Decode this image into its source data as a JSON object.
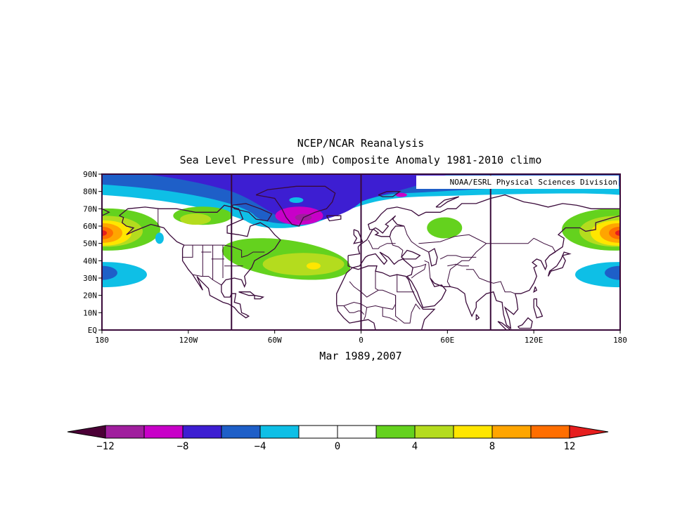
{
  "header": {
    "line1": "NCEP/NCAR Reanalysis",
    "line2": "Sea Level Pressure (mb) Composite Anomaly 1981-2010 climo"
  },
  "credit": "NOAA/ESRL Physical Sciences Division",
  "period_label": "Mar 1989,2007",
  "axes": {
    "lat_ticks": [
      "90N",
      "80N",
      "70N",
      "60N",
      "50N",
      "40N",
      "30N",
      "20N",
      "10N",
      "EQ"
    ],
    "lon_ticks": [
      "180",
      "120W",
      "60W",
      "0",
      "60E",
      "120E",
      "180"
    ]
  },
  "colorbar": {
    "levels": [
      -12,
      -10,
      -8,
      -6,
      -4,
      -2,
      0,
      2,
      4,
      6,
      8,
      10,
      12
    ],
    "labels": [
      "-12",
      "-8",
      "-4",
      "0",
      "4",
      "8",
      "12"
    ],
    "colors": [
      "#4b0036",
      "#a01e9e",
      "#c800c8",
      "#3d1ed2",
      "#1e5fc8",
      "#0ebfe6",
      "#ffffff",
      "#ffffff",
      "#64d21e",
      "#b4dc1e",
      "#ffe600",
      "#ffa500",
      "#ff6e00",
      "#e61e1e"
    ]
  },
  "map": {
    "projection": "cylindrical equidistant",
    "domain": {
      "lon": [
        -180,
        180
      ],
      "lat": [
        0,
        90
      ]
    },
    "anomaly_features": [
      {
        "name": "greenland-iceland low",
        "center": [
          -45,
          66
        ],
        "value": -10
      },
      {
        "name": "arctic low band",
        "center": [
          -20,
          82
        ],
        "value": -8
      },
      {
        "name": "atlantic high",
        "center": [
          -33,
          37
        ],
        "value": 7
      },
      {
        "name": "north pacific high west",
        "center": [
          -178,
          56
        ],
        "value": 11
      },
      {
        "name": "north pacific high east",
        "center": [
          178,
          56
        ],
        "value": 11
      },
      {
        "name": "subtropical pacific low west",
        "center": [
          -178,
          33
        ],
        "value": -5
      },
      {
        "name": "subtropical pacific low east",
        "center": [
          175,
          33
        ],
        "value": -5
      },
      {
        "name": "siberian high",
        "center": [
          58,
          59
        ],
        "value": 3
      }
    ]
  }
}
